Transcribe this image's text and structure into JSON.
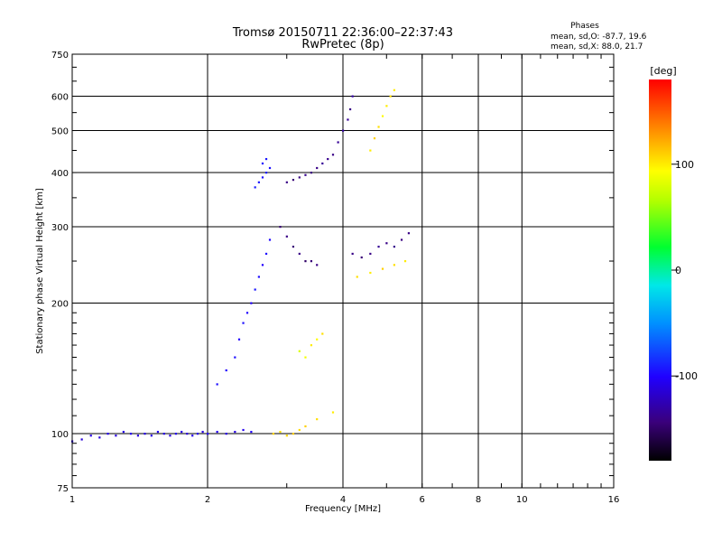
{
  "header": {
    "title": "Tromsø 20150711 22:36:00–22:37:43",
    "subtitle": "RwPretec (8p)"
  },
  "phases": {
    "title": "Phases",
    "line_o": "mean, sd,O: -87.7, 19.6",
    "line_x": "mean, sd,X:  88.0, 21.7"
  },
  "chart_data": {
    "type": "scatter",
    "xlabel": "Frequency [MHz]",
    "ylabel": "Stationary phase Virtual Height [km]",
    "x_scale": "log",
    "y_scale": "log",
    "xlim": [
      1,
      16
    ],
    "ylim": [
      75,
      750
    ],
    "x_ticks": [
      1,
      2,
      4,
      6,
      8,
      10,
      16
    ],
    "x_tick_labels": [
      "1",
      "2",
      "4",
      "6",
      "8",
      "10",
      "16"
    ],
    "x_grid_lines": [
      2,
      4,
      6,
      8,
      10
    ],
    "y_ticks": [
      75,
      100,
      200,
      300,
      400,
      500,
      600,
      750
    ],
    "y_tick_labels": [
      "75",
      "100",
      "200",
      "300",
      "400",
      "500",
      "600",
      "750"
    ],
    "y_grid_lines": [
      100,
      200,
      300,
      400,
      500,
      600
    ],
    "grid": true,
    "colorbar": {
      "label": "[deg]",
      "range": [
        -180,
        180
      ],
      "ticks": [
        100,
        0,
        -100
      ],
      "tick_labels": [
        "100",
        "0",
        "-100"
      ]
    },
    "series": [
      {
        "values": [
          [
            1.0,
            96,
            -110
          ],
          [
            1.05,
            97,
            -112
          ],
          [
            1.1,
            99,
            -108
          ],
          [
            1.15,
            98,
            -110
          ],
          [
            1.2,
            100,
            -105
          ],
          [
            1.25,
            99,
            -110
          ],
          [
            1.3,
            101,
            -108
          ],
          [
            1.35,
            100,
            -106
          ],
          [
            1.4,
            99,
            -110
          ],
          [
            1.45,
            100,
            -107
          ],
          [
            1.5,
            99,
            -108
          ],
          [
            1.55,
            101,
            -104
          ],
          [
            1.6,
            100,
            -109
          ],
          [
            1.65,
            99,
            -110
          ],
          [
            1.7,
            100,
            -106
          ],
          [
            1.75,
            101,
            -108
          ],
          [
            1.8,
            100,
            -112
          ],
          [
            1.85,
            99,
            -105
          ],
          [
            1.9,
            100,
            -108
          ],
          [
            1.95,
            101,
            -110
          ],
          [
            2.0,
            100,
            -106
          ],
          [
            2.1,
            101,
            -104
          ],
          [
            2.2,
            100,
            -108
          ],
          [
            2.3,
            101,
            -110
          ],
          [
            2.4,
            102,
            -105
          ],
          [
            2.5,
            101,
            -100
          ]
        ]
      },
      {
        "values": [
          [
            2.1,
            130,
            -95
          ],
          [
            2.2,
            140,
            -100
          ],
          [
            2.3,
            150,
            -95
          ],
          [
            2.35,
            165,
            -100
          ],
          [
            2.4,
            180,
            -95
          ],
          [
            2.45,
            190,
            -98
          ],
          [
            2.5,
            200,
            -100
          ],
          [
            2.55,
            215,
            -92
          ],
          [
            2.6,
            230,
            -96
          ],
          [
            2.65,
            245,
            -100
          ],
          [
            2.7,
            260,
            -95
          ],
          [
            2.75,
            280,
            -98
          ]
        ]
      },
      {
        "values": [
          [
            2.55,
            370,
            -90
          ],
          [
            2.6,
            380,
            -92
          ],
          [
            2.65,
            390,
            -95
          ],
          [
            2.7,
            400,
            -90
          ],
          [
            2.75,
            410,
            -94
          ],
          [
            2.65,
            420,
            -96
          ],
          [
            2.7,
            430,
            -92
          ]
        ]
      },
      {
        "values": [
          [
            2.9,
            300,
            -145
          ],
          [
            3.0,
            285,
            -140
          ],
          [
            3.1,
            270,
            -145
          ],
          [
            3.2,
            260,
            -140
          ],
          [
            3.3,
            250,
            -150
          ],
          [
            3.4,
            250,
            -145
          ],
          [
            3.5,
            245,
            -140
          ]
        ]
      },
      {
        "values": [
          [
            3.0,
            380,
            -140
          ],
          [
            3.1,
            385,
            -145
          ],
          [
            3.2,
            390,
            -140
          ],
          [
            3.3,
            395,
            -138
          ],
          [
            3.4,
            400,
            -142
          ],
          [
            3.5,
            410,
            -140
          ],
          [
            3.6,
            420,
            -135
          ],
          [
            3.7,
            430,
            -138
          ],
          [
            3.8,
            440,
            -140
          ]
        ]
      },
      {
        "values": [
          [
            3.9,
            470,
            -135
          ],
          [
            4.0,
            500,
            -130
          ],
          [
            4.1,
            530,
            -135
          ],
          [
            4.15,
            560,
            -140
          ],
          [
            4.2,
            600,
            -130
          ]
        ]
      },
      {
        "values": [
          [
            4.6,
            450,
            100
          ],
          [
            4.7,
            480,
            110
          ],
          [
            4.8,
            510,
            105
          ],
          [
            4.9,
            540,
            95
          ],
          [
            5.0,
            570,
            100
          ],
          [
            5.1,
            600,
            105
          ],
          [
            5.2,
            620,
            100
          ]
        ]
      },
      {
        "values": [
          [
            4.2,
            260,
            -140
          ],
          [
            4.4,
            255,
            -145
          ],
          [
            4.6,
            260,
            -140
          ],
          [
            4.8,
            270,
            -135
          ],
          [
            5.0,
            275,
            -140
          ],
          [
            5.2,
            270,
            -138
          ],
          [
            5.4,
            280,
            -142
          ],
          [
            5.6,
            290,
            -140
          ]
        ]
      },
      {
        "values": [
          [
            4.3,
            230,
            105
          ],
          [
            4.6,
            235,
            100
          ],
          [
            4.9,
            240,
            110
          ],
          [
            5.2,
            245,
            105
          ],
          [
            5.5,
            250,
            100
          ]
        ]
      },
      {
        "values": [
          [
            2.8,
            100,
            110
          ],
          [
            2.9,
            101,
            105
          ],
          [
            3.0,
            99,
            108
          ],
          [
            3.1,
            100,
            112
          ],
          [
            3.2,
            102,
            106
          ],
          [
            3.3,
            104,
            110
          ],
          [
            3.5,
            108,
            105
          ],
          [
            3.8,
            112,
            100
          ]
        ]
      },
      {
        "values": [
          [
            3.2,
            155,
            80
          ],
          [
            3.3,
            150,
            90
          ],
          [
            3.4,
            160,
            100
          ],
          [
            3.5,
            165,
            95
          ],
          [
            3.6,
            170,
            105
          ]
        ]
      }
    ]
  }
}
